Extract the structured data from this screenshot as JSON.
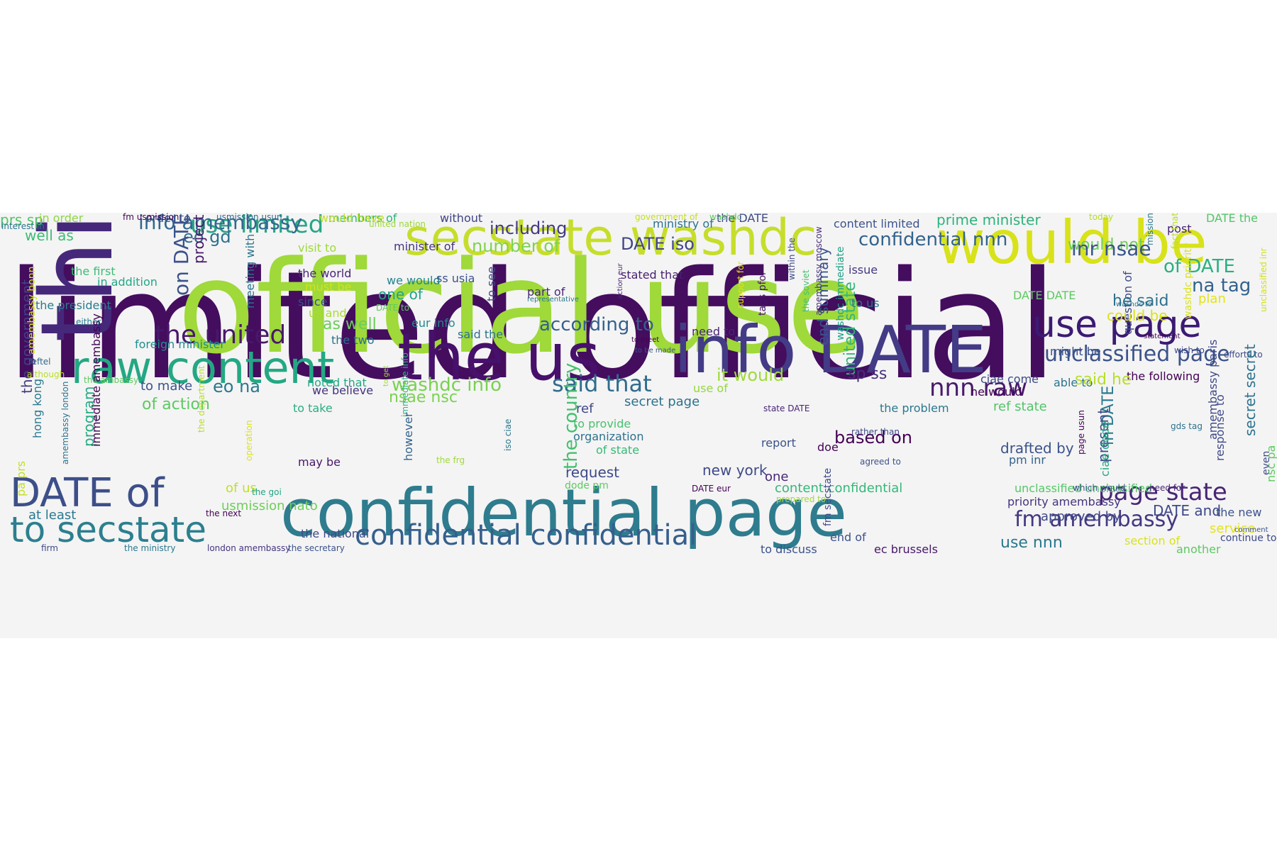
{
  "word_cloud": {
    "background": "#f4f4f4",
    "words": [
      {
        "text": "limited official",
        "color": "#440d5e"
      },
      {
        "text": "official use",
        "color": "#9fd93a"
      },
      {
        "text": "thi",
        "color": "#46287a"
      },
      {
        "text": "the us",
        "color": "#46106b"
      },
      {
        "text": "info DATE",
        "color": "#433b86"
      },
      {
        "text": "confidential page",
        "color": "#2e7c8e"
      },
      {
        "text": "would be",
        "color": "#d8e219"
      },
      {
        "text": "secstate washdc",
        "color": "#c6de2b"
      },
      {
        "text": "raw content",
        "color": "#23a883"
      },
      {
        "text": "DATE of",
        "color": "#3d4f89"
      },
      {
        "text": "to secstate",
        "color": "#2c7f8f"
      },
      {
        "text": "use page",
        "color": "#3b1a73"
      },
      {
        "text": "confidential confidential",
        "color": "#355f8d"
      },
      {
        "text": "the united",
        "color": "#48186a"
      },
      {
        "text": "use limited",
        "color": "#27a585"
      },
      {
        "text": "info amembassy",
        "color": "#31688e"
      },
      {
        "text": "page state",
        "color": "#482576"
      },
      {
        "text": "fm amembassy",
        "color": "#453781"
      },
      {
        "text": "unclassified page",
        "color": "#3c538a"
      },
      {
        "text": "nnn raw",
        "color": "#481a6c"
      },
      {
        "text": "said that",
        "color": "#2f6c8e"
      },
      {
        "text": "confidential nnn",
        "color": "#33638d"
      },
      {
        "text": "according to",
        "color": "#355f8d"
      },
      {
        "text": "washdc info",
        "color": "#7ad151"
      },
      {
        "text": "prs sp",
        "color": "#52c569"
      },
      {
        "text": "in order",
        "color": "#8ed645"
      },
      {
        "text": "interest in",
        "color": "#2b758e"
      },
      {
        "text": "members of",
        "color": "#2fb47c"
      },
      {
        "text": "would have",
        "color": "#c2df23"
      },
      {
        "text": "without",
        "color": "#414487"
      },
      {
        "text": "government of",
        "color": "#c5e021"
      },
      {
        "text": "the DATE",
        "color": "#3e4a89"
      },
      {
        "text": "prime minister",
        "color": "#2db27d"
      },
      {
        "text": "DATE the",
        "color": "#54c568"
      },
      {
        "text": "today",
        "color": "#b5de2b"
      },
      {
        "text": "order to",
        "color": "#3b528b"
      },
      {
        "text": "usmission usun",
        "color": "#2f6b8e"
      },
      {
        "text": "fm usmission",
        "color": "#440154"
      },
      {
        "text": "united nation",
        "color": "#9dd93b"
      },
      {
        "text": "ministry of",
        "color": "#2c728e"
      },
      {
        "text": "content limited",
        "color": "#3b528b"
      },
      {
        "text": "post",
        "color": "#482173"
      },
      {
        "text": "mission",
        "color": "#29788e"
      },
      {
        "text": "fact that",
        "color": "#bade28"
      },
      {
        "text": "eo gd",
        "color": "#2d708e"
      },
      {
        "text": "project",
        "color": "#481769"
      },
      {
        "text": "including",
        "color": "#443a83"
      },
      {
        "text": "number of",
        "color": "#7fd34e"
      },
      {
        "text": "DATE iso",
        "color": "#404588"
      },
      {
        "text": "would not",
        "color": "#6ece58"
      },
      {
        "text": "inr nsae",
        "color": "#3a548c"
      },
      {
        "text": "of DATE",
        "color": "#2ab07f"
      },
      {
        "text": "na tag",
        "color": "#33638d"
      },
      {
        "text": "unclassified inr",
        "color": "#d0e11c"
      },
      {
        "text": "well as",
        "color": "#3dbc74"
      },
      {
        "text": "visit to",
        "color": "#9dd93b"
      },
      {
        "text": "minister of",
        "color": "#46337e"
      },
      {
        "text": "meeting with",
        "color": "#2c738e"
      },
      {
        "text": "the world",
        "color": "#482576"
      },
      {
        "text": "must be",
        "color": "#d2e21b"
      },
      {
        "text": "since",
        "color": "#3e4c8a"
      },
      {
        "text": "us and",
        "color": "#aadc32"
      },
      {
        "text": "we would",
        "color": "#25848e"
      },
      {
        "text": "one of",
        "color": "#20a486"
      },
      {
        "text": "ss usia",
        "color": "#3a548c"
      },
      {
        "text": "part of",
        "color": "#482878"
      },
      {
        "text": "representative",
        "color": "#2a788e"
      },
      {
        "text": "stated that",
        "color": "#482071"
      },
      {
        "text": "issue",
        "color": "#453882"
      },
      {
        "text": "support for",
        "color": "#e5e419"
      },
      {
        "text": "tags pfor",
        "color": "#471365"
      },
      {
        "text": "within the",
        "color": "#3e4989"
      },
      {
        "text": "the soviet",
        "color": "#46c06f"
      },
      {
        "text": "amembassy moscow",
        "color": "#472c7a"
      },
      {
        "text": "washdc immediate",
        "color": "#1fa088"
      },
      {
        "text": "end summary",
        "color": "#3b528b"
      },
      {
        "text": "united state",
        "color": "#34b679"
      },
      {
        "text": "to us",
        "color": "#2a768e"
      },
      {
        "text": "the government",
        "color": "#433e85"
      },
      {
        "text": "amembassy bonn",
        "color": "#d5e21a"
      },
      {
        "text": "the first",
        "color": "#3dbc74"
      },
      {
        "text": "in addition",
        "color": "#22a785"
      },
      {
        "text": "the president",
        "color": "#297b8e"
      },
      {
        "text": "either",
        "color": "#277f8e"
      },
      {
        "text": "foreign minister",
        "color": "#218e8d"
      },
      {
        "text": "as well",
        "color": "#6ccd5a"
      },
      {
        "text": "eur info",
        "color": "#23898e"
      },
      {
        "text": "said the",
        "color": "#2c718e"
      },
      {
        "text": "the two",
        "color": "#2d708e"
      },
      {
        "text": "need to",
        "color": "#482475"
      },
      {
        "text": "to meet",
        "color": "#440154"
      },
      {
        "text": "to be made",
        "color": "#3b528b"
      },
      {
        "text": "might be",
        "color": "#3b528b"
      },
      {
        "text": "question of",
        "color": "#3e4989"
      },
      {
        "text": "he said",
        "color": "#2d708e"
      },
      {
        "text": "plan",
        "color": "#e2e418"
      },
      {
        "text": "efforts to",
        "color": "#3e4989"
      },
      {
        "text": "wish to",
        "color": "#3e4989"
      },
      {
        "text": "could be",
        "color": "#d9e319"
      },
      {
        "text": "the following",
        "color": "#440154"
      },
      {
        "text": "able to",
        "color": "#2c738e"
      },
      {
        "text": "reftel",
        "color": "#31688e"
      },
      {
        "text": "although",
        "color": "#b8de29"
      },
      {
        "text": "the ambassy",
        "color": "#5ec962"
      },
      {
        "text": "on DATE",
        "color": "#3b528b"
      },
      {
        "text": "to make",
        "color": "#3b528b"
      },
      {
        "text": "eo na",
        "color": "#2a788e"
      },
      {
        "text": "it would",
        "color": "#a0da39"
      },
      {
        "text": "sp ss",
        "color": "#46307e"
      },
      {
        "text": "noted that",
        "color": "#22a884"
      },
      {
        "text": "we believe",
        "color": "#45337d"
      },
      {
        "text": "use of",
        "color": "#95d840"
      },
      {
        "text": "nsae nsc",
        "color": "#7ad151"
      },
      {
        "text": "program",
        "color": "#25ab82"
      },
      {
        "text": "of action",
        "color": "#5ec962"
      },
      {
        "text": "to take",
        "color": "#29af7f"
      },
      {
        "text": "immediate info",
        "color": "#2fb47c"
      },
      {
        "text": "secret page",
        "color": "#2c728e"
      },
      {
        "text": "ref",
        "color": "#404688"
      },
      {
        "text": "state DATE",
        "color": "#482475"
      },
      {
        "text": "to provide",
        "color": "#48c16e"
      },
      {
        "text": "the problem",
        "color": "#2a788e"
      },
      {
        "text": "ref state",
        "color": "#53c569"
      },
      {
        "text": "said he",
        "color": "#b8de29"
      },
      {
        "text": "gds tag",
        "color": "#2c728e"
      },
      {
        "text": "hong kong",
        "color": "#2a788e"
      },
      {
        "text": "the country",
        "color": "#45c06f"
      },
      {
        "text": "however",
        "color": "#33638d"
      },
      {
        "text": "organization",
        "color": "#2c728e"
      },
      {
        "text": "of state",
        "color": "#38b977"
      },
      {
        "text": "report",
        "color": "#3b528b"
      },
      {
        "text": "based on",
        "color": "#440154"
      },
      {
        "text": "doe",
        "color": "#440154"
      },
      {
        "text": "drafted by",
        "color": "#3b528b"
      },
      {
        "text": "pm inr",
        "color": "#33638d"
      },
      {
        "text": "in DATE",
        "color": "#2a788e"
      },
      {
        "text": "may be",
        "color": "#48186a"
      },
      {
        "text": "request",
        "color": "#3e4989"
      },
      {
        "text": "new york",
        "color": "#3e4989"
      },
      {
        "text": "one",
        "color": "#482878"
      },
      {
        "text": "of us",
        "color": "#c2df23"
      },
      {
        "text": "content confidential",
        "color": "#35b779"
      },
      {
        "text": "unclassified unclassified",
        "color": "#55c667"
      },
      {
        "text": "dode pm",
        "color": "#5ec962"
      },
      {
        "text": "DATE eur",
        "color": "#440154"
      },
      {
        "text": "prepared to",
        "color": "#a0da39"
      },
      {
        "text": "which would",
        "color": "#3b528b"
      },
      {
        "text": "need for",
        "color": "#482878"
      },
      {
        "text": "usmission nato",
        "color": "#6ece58"
      },
      {
        "text": "at least",
        "color": "#29788e"
      },
      {
        "text": "priority amembassy",
        "color": "#46337e"
      },
      {
        "text": "approved by",
        "color": "#3e4989"
      },
      {
        "text": "DATE and",
        "color": "#3e4989"
      },
      {
        "text": "the new",
        "color": "#3b528b"
      },
      {
        "text": "service",
        "color": "#e5e419"
      },
      {
        "text": "use nnn",
        "color": "#2a788e"
      },
      {
        "text": "section of",
        "color": "#d9e319"
      },
      {
        "text": "another",
        "color": "#5ec962"
      },
      {
        "text": "continue to",
        "color": "#3e4989"
      },
      {
        "text": "comment",
        "color": "#3b528b"
      },
      {
        "text": "firm",
        "color": "#3e4989"
      },
      {
        "text": "the ministry",
        "color": "#2a788e"
      },
      {
        "text": "london amembassy",
        "color": "#46337e"
      },
      {
        "text": "the secretary",
        "color": "#3b528b"
      },
      {
        "text": "the national",
        "color": "#3e4989"
      },
      {
        "text": "end of",
        "color": "#3b528b"
      },
      {
        "text": "to discuss",
        "color": "#3b528b"
      },
      {
        "text": "ec brussels",
        "color": "#481769"
      },
      {
        "text": "fm secstate",
        "color": "#3e4989"
      },
      {
        "text": "pa prs",
        "color": "#c2df23"
      },
      {
        "text": "amembassy london",
        "color": "#2c728e"
      },
      {
        "text": "immediate amembassy",
        "color": "#440154"
      },
      {
        "text": "operation",
        "color": "#d9e319"
      },
      {
        "text": "the department",
        "color": "#b8de29"
      },
      {
        "text": "the goi",
        "color": "#20a486"
      },
      {
        "text": "the next",
        "color": "#440154"
      },
      {
        "text": "to get",
        "color": "#a0da39"
      },
      {
        "text": "DATE to",
        "color": "#5ec962"
      },
      {
        "text": "the frg",
        "color": "#a0da39"
      },
      {
        "text": "iso ciae",
        "color": "#2a788e"
      },
      {
        "text": "to see",
        "color": "#3e4989"
      },
      {
        "text": "rather than",
        "color": "#3e4989"
      },
      {
        "text": "agreed to",
        "color": "#3b528b"
      },
      {
        "text": "present",
        "color": "#3e4989"
      },
      {
        "text": "ciae dode",
        "color": "#22a884"
      },
      {
        "text": "page usun",
        "color": "#440154"
      },
      {
        "text": "washdc priority",
        "color": "#d9e319"
      },
      {
        "text": "washdc to",
        "color": "#2c728e"
      },
      {
        "text": "ciae come",
        "color": "#3e4989"
      },
      {
        "text": "he would",
        "color": "#440154"
      },
      {
        "text": "statement",
        "color": "#440154"
      },
      {
        "text": "even",
        "color": "#3e4989"
      },
      {
        "text": "secret secret",
        "color": "#2c728e"
      },
      {
        "text": "nsc pa",
        "color": "#5ec962"
      },
      {
        "text": "response to",
        "color": "#3e4989"
      },
      {
        "text": "amembassy paris",
        "color": "#3e4989"
      },
      {
        "text": "DATE DATE",
        "color": "#5ec962"
      },
      {
        "text": "action eur",
        "color": "#482475"
      },
      {
        "text": "washdc",
        "color": "#5ec962"
      },
      {
        "text": "note",
        "color": "#3e4989"
      }
    ]
  }
}
